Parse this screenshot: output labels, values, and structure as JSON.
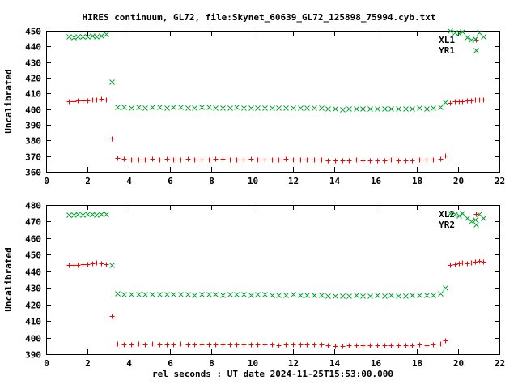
{
  "title": "HIRES continuum, GL72, file:Skynet_60639_GL72_125898_75994.cyb.txt",
  "x_axis_label": "rel seconds : UT date 2024-11-25T15:53:00.000",
  "colors": {
    "red": "#ff0000",
    "green": "#00a32e",
    "axis": "#000000",
    "background": "#ffffff"
  },
  "chart_data": [
    {
      "type": "scatter",
      "ylabel": "Uncalibrated",
      "xlabel": "",
      "xlim": [
        0,
        22
      ],
      "ylim": [
        360,
        450
      ],
      "x_ticks": [
        0,
        2,
        4,
        6,
        8,
        10,
        12,
        14,
        16,
        18,
        20,
        22
      ],
      "y_ticks": [
        360,
        370,
        380,
        390,
        400,
        410,
        420,
        430,
        440,
        450
      ],
      "grid": false,
      "legend_position": "top-right-inside",
      "series": [
        {
          "name": "XL1",
          "marker": "plus",
          "color": "#ff0000",
          "x": [
            1.1,
            1.33,
            1.55,
            1.78,
            2.0,
            2.23,
            2.45,
            2.68,
            2.9,
            3.18,
            3.45,
            3.79,
            4.13,
            4.47,
            4.81,
            5.16,
            5.5,
            5.84,
            6.18,
            6.52,
            6.86,
            7.2,
            7.54,
            7.88,
            8.22,
            8.57,
            8.91,
            9.25,
            9.59,
            9.93,
            10.27,
            10.61,
            10.95,
            11.29,
            11.63,
            11.97,
            12.32,
            12.66,
            13.0,
            13.34,
            13.68,
            14.02,
            14.36,
            14.7,
            15.04,
            15.38,
            15.73,
            16.07,
            16.41,
            16.75,
            17.09,
            17.43,
            17.77,
            18.11,
            18.45,
            18.79,
            19.14,
            19.38,
            19.62,
            19.82,
            20.02,
            20.21,
            20.41,
            20.61,
            20.81,
            21.0,
            21.2
          ],
          "y": [
            405.2,
            405.0,
            405.3,
            405.5,
            405.4,
            405.8,
            406.0,
            406.8,
            406.2,
            381.2,
            368.8,
            368.3,
            368.0,
            367.8,
            367.9,
            368.1,
            368.0,
            368.2,
            368.0,
            367.9,
            368.1,
            368.0,
            367.8,
            368.0,
            368.2,
            368.1,
            368.0,
            367.9,
            368.0,
            368.1,
            368.0,
            367.8,
            367.9,
            368.0,
            368.1,
            368.0,
            367.9,
            367.8,
            368.0,
            367.9,
            367.5,
            367.2,
            367.0,
            367.3,
            367.6,
            367.4,
            367.2,
            367.5,
            367.3,
            367.6,
            367.4,
            367.2,
            367.5,
            367.8,
            367.6,
            367.9,
            368.3,
            370.2,
            404.2,
            404.8,
            405.2,
            405.0,
            405.3,
            405.6,
            405.8,
            406.0,
            405.8
          ]
        },
        {
          "name": "YR1",
          "marker": "cross",
          "color": "#00a32e",
          "x": [
            1.1,
            1.33,
            1.55,
            1.78,
            2.0,
            2.23,
            2.45,
            2.68,
            2.9,
            3.18,
            3.45,
            3.79,
            4.13,
            4.47,
            4.81,
            5.16,
            5.5,
            5.84,
            6.18,
            6.52,
            6.86,
            7.2,
            7.54,
            7.88,
            8.22,
            8.57,
            8.91,
            9.25,
            9.59,
            9.93,
            10.27,
            10.61,
            10.95,
            11.29,
            11.63,
            11.97,
            12.32,
            12.66,
            13.0,
            13.34,
            13.68,
            14.02,
            14.36,
            14.7,
            15.04,
            15.38,
            15.73,
            16.07,
            16.41,
            16.75,
            17.09,
            17.43,
            17.77,
            18.11,
            18.45,
            18.79,
            19.14,
            19.38,
            19.62,
            19.82,
            20.02,
            20.21,
            20.41,
            20.61,
            20.81,
            21.0,
            21.2
          ],
          "y": [
            446.3,
            446.0,
            446.4,
            446.2,
            446.5,
            446.8,
            446.4,
            447.0,
            448.0,
            417.2,
            401.5,
            401.2,
            401.0,
            401.3,
            401.1,
            401.4,
            401.2,
            401.0,
            401.2,
            401.4,
            401.1,
            401.0,
            401.2,
            401.3,
            401.0,
            400.8,
            401.0,
            401.2,
            401.1,
            400.9,
            401.0,
            401.1,
            400.9,
            400.7,
            400.9,
            401.0,
            400.8,
            400.7,
            400.9,
            400.8,
            400.4,
            400.1,
            400.0,
            400.3,
            400.6,
            400.4,
            400.2,
            400.5,
            400.3,
            400.6,
            400.4,
            400.2,
            400.5,
            400.8,
            400.6,
            400.9,
            401.6,
            404.3,
            449.8,
            449.0,
            448.2,
            449.5,
            446.0,
            444.2,
            444.8,
            448.8,
            446.3
          ]
        }
      ]
    },
    {
      "type": "scatter",
      "ylabel": "Uncalibrated",
      "xlabel": "rel seconds : UT date 2024-11-25T15:53:00.000",
      "xlim": [
        0,
        22
      ],
      "ylim": [
        390,
        480
      ],
      "x_ticks": [
        0,
        2,
        4,
        6,
        8,
        10,
        12,
        14,
        16,
        18,
        20,
        22
      ],
      "y_ticks": [
        390,
        400,
        410,
        420,
        430,
        440,
        450,
        460,
        470,
        480
      ],
      "grid": false,
      "legend_position": "top-right-inside",
      "series": [
        {
          "name": "XL2",
          "marker": "plus",
          "color": "#ff0000",
          "x": [
            1.1,
            1.33,
            1.55,
            1.78,
            2.0,
            2.23,
            2.45,
            2.68,
            2.9,
            3.18,
            3.45,
            3.79,
            4.13,
            4.47,
            4.81,
            5.16,
            5.5,
            5.84,
            6.18,
            6.52,
            6.86,
            7.2,
            7.54,
            7.88,
            8.22,
            8.57,
            8.91,
            9.25,
            9.59,
            9.93,
            10.27,
            10.61,
            10.95,
            11.29,
            11.63,
            11.97,
            12.32,
            12.66,
            13.0,
            13.34,
            13.68,
            14.02,
            14.36,
            14.7,
            15.04,
            15.38,
            15.73,
            16.07,
            16.41,
            16.75,
            17.09,
            17.43,
            17.77,
            18.11,
            18.45,
            18.79,
            19.14,
            19.38,
            19.62,
            19.82,
            20.02,
            20.21,
            20.41,
            20.61,
            20.81,
            21.0,
            21.2
          ],
          "y": [
            443.6,
            443.9,
            443.7,
            444.1,
            444.4,
            444.9,
            445.1,
            444.7,
            444.2,
            413.0,
            396.4,
            396.1,
            395.9,
            396.2,
            396.0,
            396.3,
            396.1,
            395.9,
            396.1,
            396.2,
            396.0,
            395.8,
            396.0,
            396.1,
            395.9,
            395.8,
            396.0,
            396.1,
            396.0,
            395.8,
            395.9,
            396.0,
            395.8,
            395.6,
            395.8,
            396.0,
            395.8,
            395.7,
            395.9,
            395.8,
            395.4,
            395.1,
            395.0,
            395.3,
            395.6,
            395.4,
            395.2,
            395.5,
            395.3,
            395.6,
            395.4,
            395.2,
            395.5,
            395.8,
            395.6,
            395.9,
            396.4,
            398.2,
            443.6,
            444.3,
            444.8,
            445.1,
            444.9,
            445.3,
            445.6,
            446.4,
            445.7
          ]
        },
        {
          "name": "YR2",
          "marker": "cross",
          "color": "#00a32e",
          "x": [
            1.1,
            1.33,
            1.55,
            1.78,
            2.0,
            2.23,
            2.45,
            2.68,
            2.9,
            3.18,
            3.45,
            3.79,
            4.13,
            4.47,
            4.81,
            5.16,
            5.5,
            5.84,
            6.18,
            6.52,
            6.86,
            7.2,
            7.54,
            7.88,
            8.22,
            8.57,
            8.91,
            9.25,
            9.59,
            9.93,
            10.27,
            10.61,
            10.95,
            11.29,
            11.63,
            11.97,
            12.32,
            12.66,
            13.0,
            13.34,
            13.68,
            14.02,
            14.36,
            14.7,
            15.04,
            15.38,
            15.73,
            16.07,
            16.41,
            16.75,
            17.09,
            17.43,
            17.77,
            18.11,
            18.45,
            18.79,
            19.14,
            19.38,
            19.62,
            19.82,
            20.02,
            20.21,
            20.41,
            20.61,
            20.81,
            21.0,
            21.2
          ],
          "y": [
            474.2,
            474.0,
            474.4,
            474.1,
            474.5,
            474.8,
            474.3,
            474.6,
            474.4,
            443.8,
            426.5,
            426.2,
            426.0,
            426.3,
            426.1,
            426.4,
            426.2,
            426.0,
            426.2,
            426.3,
            426.1,
            425.9,
            426.1,
            426.2,
            426.0,
            425.8,
            426.0,
            426.2,
            426.1,
            425.9,
            426.0,
            426.1,
            425.9,
            425.7,
            425.9,
            426.0,
            425.8,
            425.7,
            425.9,
            425.8,
            425.4,
            425.1,
            425.0,
            425.3,
            425.6,
            425.4,
            425.2,
            425.5,
            425.3,
            425.6,
            425.4,
            425.2,
            425.5,
            425.8,
            425.6,
            425.9,
            426.6,
            430.0,
            475.3,
            474.6,
            473.8,
            474.9,
            472.0,
            470.3,
            471.0,
            474.5,
            472.4
          ]
        }
      ]
    }
  ]
}
